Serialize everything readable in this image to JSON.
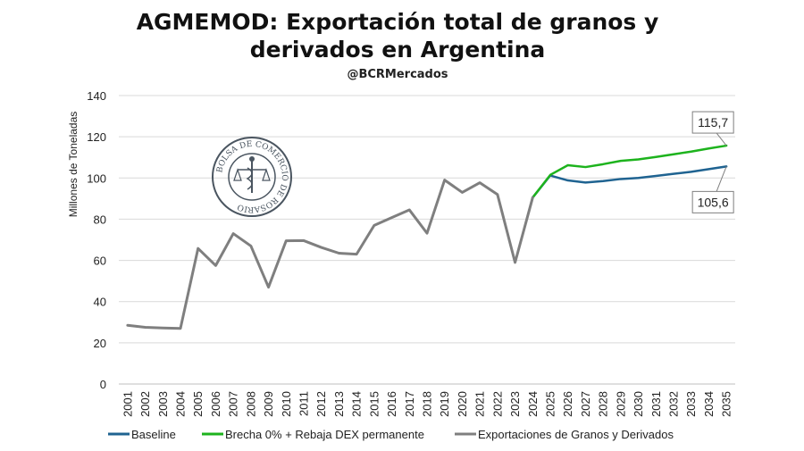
{
  "chart_data": {
    "type": "line",
    "title_line1": "AGMEMOD: Exportación total de granos y",
    "title_line2": "derivados en Argentina",
    "subtitle": "@BCRMercados",
    "ylabel": "Millones de Toneladas",
    "ylim": [
      0,
      140
    ],
    "yticks": [
      "0",
      "20",
      "40",
      "60",
      "80",
      "100",
      "120",
      "140"
    ],
    "grid": true,
    "legend_position": "bottom",
    "x": [
      "2001",
      "2002",
      "2003",
      "2004",
      "2005",
      "2006",
      "2007",
      "2008",
      "2009",
      "2010",
      "2011",
      "2012",
      "2013",
      "2014",
      "2015",
      "2016",
      "2017",
      "2018",
      "2019",
      "2020",
      "2021",
      "2022",
      "2023",
      "2024",
      "2025",
      "2026",
      "2027",
      "2028",
      "2029",
      "2030",
      "2031",
      "2032",
      "2033",
      "2034",
      "2035"
    ],
    "series": [
      {
        "name": "Exportaciones de Granos y Derivados",
        "color": "#7f7f7f",
        "values": [
          28.5,
          27.5,
          27.2,
          27.0,
          65.8,
          57.5,
          73.0,
          67.0,
          47.0,
          69.5,
          69.6,
          66.3,
          63.5,
          63.0,
          77.0,
          80.8,
          84.5,
          73.2,
          99.0,
          93.0,
          97.7,
          92.0,
          59.0,
          90.5,
          null,
          null,
          null,
          null,
          null,
          null,
          null,
          null,
          null,
          null,
          null
        ]
      },
      {
        "name": "Baseline",
        "color": "#1f6391",
        "values": [
          null,
          null,
          null,
          null,
          null,
          null,
          null,
          null,
          null,
          null,
          null,
          null,
          null,
          null,
          null,
          null,
          null,
          null,
          null,
          null,
          null,
          null,
          null,
          90.5,
          101.2,
          98.8,
          97.8,
          98.5,
          99.5,
          100.0,
          101.0,
          102.0,
          103.0,
          104.3,
          105.6
        ]
      },
      {
        "name": "Brecha 0% + Rebaja DEX permanente",
        "color": "#1db31d",
        "values": [
          null,
          null,
          null,
          null,
          null,
          null,
          null,
          null,
          null,
          null,
          null,
          null,
          null,
          null,
          null,
          null,
          null,
          null,
          null,
          null,
          null,
          null,
          null,
          90.5,
          101.5,
          106.2,
          105.3,
          106.7,
          108.3,
          109.0,
          110.2,
          111.5,
          112.8,
          114.3,
          115.7
        ]
      }
    ],
    "annotations": [
      {
        "text": "115,7",
        "series": "Brecha 0% + Rebaja DEX permanente",
        "x": "2035",
        "y": 115.7,
        "position": "above"
      },
      {
        "text": "105,6",
        "series": "Baseline",
        "x": "2035",
        "y": 105.6,
        "position": "below"
      }
    ]
  },
  "watermark": {
    "text": "BOLSA DE COMERCIO DE ROSARIO",
    "color": "#4a5560"
  }
}
